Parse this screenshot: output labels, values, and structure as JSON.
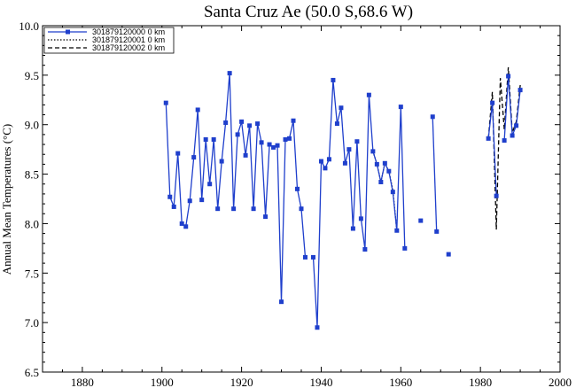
{
  "chart_data": {
    "type": "line",
    "title": "Santa Cruz Ae (50.0 S,68.6 W)",
    "xlabel": "",
    "ylabel": "Annual Mean Temperatures (°C)",
    "xlim": [
      1870,
      2000
    ],
    "ylim": [
      6.5,
      10.0
    ],
    "x_ticks": [
      1880,
      1900,
      1920,
      1940,
      1960,
      1980,
      2000
    ],
    "y_ticks": [
      "6.5",
      "7.0",
      "7.5",
      "8.0",
      "8.5",
      "9.0",
      "9.5",
      "10.0"
    ],
    "grid": false,
    "legend_position": "top-left",
    "series": [
      {
        "name": "301879120000  0 km",
        "color": "#1f3fcc",
        "style": "solid-square-markers",
        "points": [
          [
            1901,
            9.22
          ],
          [
            1902,
            8.27
          ],
          [
            1903,
            8.17
          ],
          [
            1904,
            8.71
          ],
          [
            1905,
            8.0
          ],
          [
            1906,
            7.97
          ],
          [
            1907,
            8.23
          ],
          [
            1908,
            8.67
          ],
          [
            1909,
            9.15
          ],
          [
            1910,
            8.24
          ],
          [
            1911,
            8.85
          ],
          [
            1912,
            8.4
          ],
          [
            1913,
            8.85
          ],
          [
            1914,
            8.15
          ],
          [
            1915,
            8.63
          ],
          [
            1916,
            9.02
          ],
          [
            1917,
            9.52
          ],
          [
            1918,
            8.15
          ],
          [
            1919,
            8.9
          ],
          [
            1920,
            9.03
          ],
          [
            1921,
            8.69
          ],
          [
            1922,
            8.99
          ],
          [
            1923,
            8.15
          ],
          [
            1924,
            9.01
          ],
          [
            1925,
            8.82
          ],
          [
            1926,
            8.07
          ],
          [
            1927,
            8.8
          ],
          [
            1928,
            8.77
          ],
          [
            1929,
            8.79
          ],
          [
            1930,
            7.21
          ],
          [
            1931,
            8.85
          ],
          [
            1932,
            8.86
          ],
          [
            1933,
            9.04
          ],
          [
            1934,
            8.35
          ],
          [
            1935,
            8.15
          ],
          [
            1936,
            7.66
          ],
          [
            1937,
            null
          ],
          [
            1938,
            7.66
          ],
          [
            1939,
            6.95
          ],
          [
            1940,
            8.63
          ],
          [
            1941,
            8.56
          ],
          [
            1942,
            8.65
          ],
          [
            1943,
            9.45
          ],
          [
            1944,
            9.01
          ],
          [
            1945,
            9.17
          ],
          [
            1946,
            8.61
          ],
          [
            1947,
            8.75
          ],
          [
            1948,
            7.95
          ],
          [
            1949,
            8.83
          ],
          [
            1950,
            8.05
          ],
          [
            1951,
            7.74
          ],
          [
            1952,
            9.3
          ],
          [
            1953,
            8.73
          ],
          [
            1954,
            8.6
          ],
          [
            1955,
            8.42
          ],
          [
            1956,
            8.61
          ],
          [
            1957,
            8.53
          ],
          [
            1958,
            8.32
          ],
          [
            1959,
            7.93
          ],
          [
            1960,
            9.18
          ],
          [
            1961,
            7.75
          ],
          [
            1962,
            null
          ],
          [
            1965,
            8.03
          ],
          [
            1966,
            null
          ],
          [
            1968,
            9.08
          ],
          [
            1969,
            7.92
          ],
          [
            1970,
            null
          ],
          [
            1972,
            7.69
          ],
          [
            1973,
            null
          ],
          [
            1982,
            8.86
          ],
          [
            1983,
            9.22
          ],
          [
            1984,
            8.28
          ],
          [
            1985,
            null
          ],
          [
            1986,
            8.84
          ],
          [
            1987,
            9.49
          ],
          [
            1988,
            8.89
          ],
          [
            1989,
            8.99
          ],
          [
            1990,
            9.35
          ]
        ]
      },
      {
        "name": "301879120001  0 km",
        "color": "#000000",
        "style": "dotted",
        "points": [
          [
            1953,
            8.73
          ],
          [
            1954,
            8.6
          ],
          [
            1955,
            8.42
          ],
          [
            1956,
            8.61
          ],
          [
            1957,
            8.53
          ],
          [
            1958,
            8.34
          ],
          [
            1959,
            7.93
          ]
        ]
      },
      {
        "name": "301879120002  0 km",
        "color": "#000000",
        "style": "dashed",
        "points": [
          [
            1982,
            8.86
          ],
          [
            1983,
            9.33
          ],
          [
            1984,
            7.94
          ],
          [
            1985,
            9.47
          ],
          [
            1986,
            8.95
          ],
          [
            1987,
            9.58
          ],
          [
            1988,
            8.92
          ],
          [
            1989,
            9.03
          ],
          [
            1990,
            9.4
          ]
        ]
      }
    ]
  }
}
